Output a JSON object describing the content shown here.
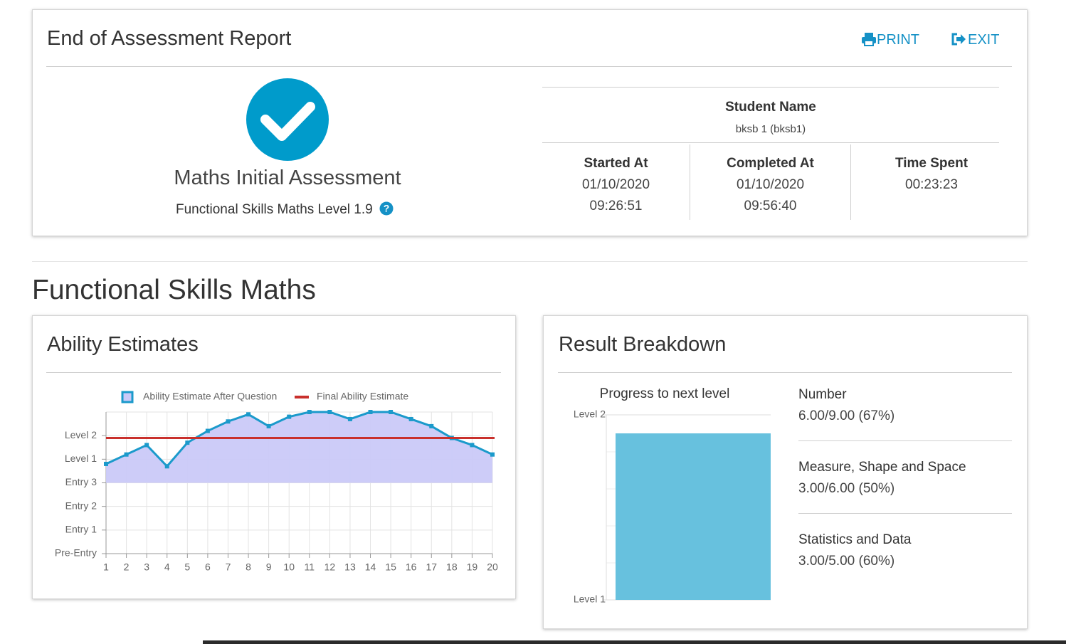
{
  "header": {
    "title": "End of Assessment Report",
    "print": "PRINT",
    "exit": "EXIT"
  },
  "assessment": {
    "name": "Maths Initial Assessment",
    "level": "Functional Skills Maths Level 1.9"
  },
  "student": {
    "label": "Student Name",
    "value": "bksb 1 (bksb1)"
  },
  "stats": [
    {
      "label": "Started At",
      "lines": [
        "01/10/2020",
        "09:26:51"
      ]
    },
    {
      "label": "Completed At",
      "lines": [
        "01/10/2020",
        "09:56:40"
      ]
    },
    {
      "label": "Time Spent",
      "lines": [
        "00:23:23"
      ]
    }
  ],
  "section_title": "Functional Skills Maths",
  "ability": {
    "title": "Ability Estimates"
  },
  "breakdown": {
    "title": "Result Breakdown",
    "items": [
      {
        "name": "Number",
        "score": "6.00/9.00 (67%)"
      },
      {
        "name": "Measure, Shape and Space",
        "score": "3.00/6.00 (50%)"
      },
      {
        "name": "Statistics and Data",
        "score": "3.00/5.00 (60%)"
      }
    ]
  },
  "chart_data": [
    {
      "type": "line",
      "x": [
        1,
        2,
        3,
        4,
        5,
        6,
        7,
        8,
        9,
        10,
        11,
        12,
        13,
        14,
        15,
        16,
        17,
        18,
        19,
        20
      ],
      "xlim": [
        1,
        20
      ],
      "xticks": [
        1,
        2,
        3,
        4,
        5,
        6,
        7,
        8,
        9,
        10,
        11,
        12,
        13,
        14,
        15,
        16,
        17,
        18,
        19,
        20
      ],
      "ylim": [
        0,
        6
      ],
      "yticks": [
        {
          "value": 0,
          "label": "Pre-Entry"
        },
        {
          "value": 1,
          "label": "Entry 1"
        },
        {
          "value": 2,
          "label": "Entry 2"
        },
        {
          "value": 3,
          "label": "Entry 3"
        },
        {
          "value": 4,
          "label": "Level 1"
        },
        {
          "value": 5,
          "label": "Level 2"
        }
      ],
      "grid": true,
      "series": [
        {
          "name": "Ability Estimate After Question",
          "color": "#1b9acb",
          "fill": "#cac9f8",
          "fill_to": 3,
          "values": [
            3.8,
            4.2,
            4.6,
            3.7,
            4.7,
            5.2,
            5.6,
            5.9,
            5.4,
            5.8,
            6.0,
            6.0,
            5.7,
            6.0,
            6.0,
            5.7,
            5.4,
            4.9,
            4.6,
            4.2
          ]
        }
      ],
      "reference": {
        "name": "Final Ability Estimate",
        "color": "#c9302c",
        "value": 4.9
      }
    },
    {
      "type": "bar",
      "title": "Progress to next level",
      "values": [
        1.9
      ],
      "color": "#67c1de",
      "ylim": [
        1,
        2
      ],
      "yticks": [
        {
          "value": 1,
          "label": "Level 1"
        },
        {
          "value": 2,
          "label": "Level 2"
        }
      ],
      "minor_yticks": [
        1.2,
        1.4,
        1.6,
        1.8
      ],
      "grid": true
    }
  ]
}
